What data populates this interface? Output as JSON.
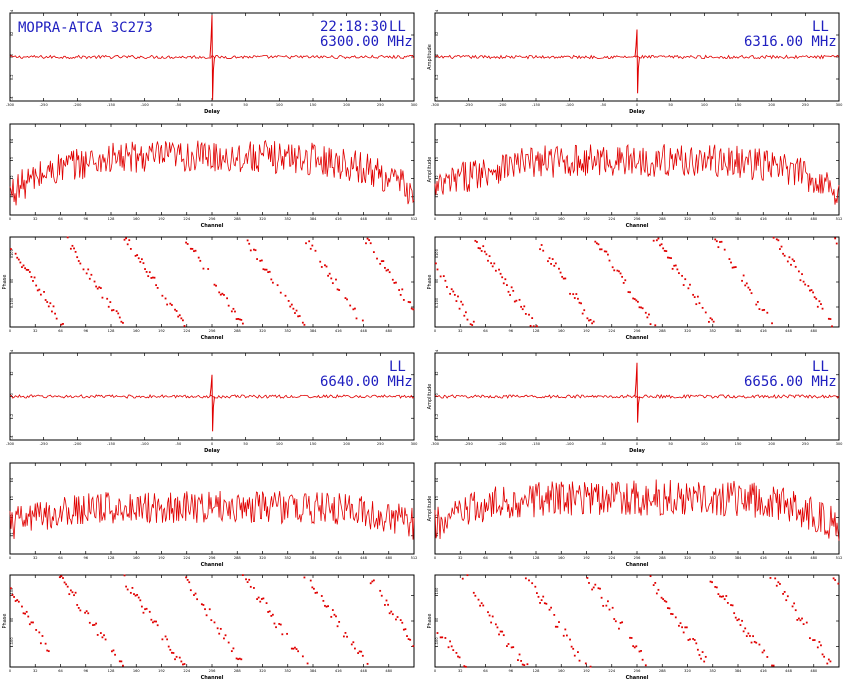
{
  "header": {
    "title": "MOPRA-ATCA 3C273",
    "time": "22:18:30",
    "polarization": "LL"
  },
  "colors": {
    "trace": "#e00000",
    "header_text": "#2020c0",
    "axis": "#000000"
  },
  "chart_data": [
    {
      "id": "p1",
      "type": "line",
      "panel": "delay",
      "freq_label": "6300.00 MHz",
      "pol": "LL",
      "xlabel": "Delay",
      "ylabel": "",
      "xlim": [
        -300,
        300
      ],
      "ylim": [
        -4,
        4
      ],
      "xticks": [
        "-300",
        "-250",
        "-200",
        "-150",
        "-100",
        "-50",
        "0",
        "50",
        "100",
        "150",
        "200",
        "250",
        "300"
      ],
      "yticks": [
        "-4",
        "-2",
        "0",
        "2",
        "4"
      ],
      "signal": {
        "peak_x": 0,
        "peak_y": 3.8,
        "trough_y": -3.9,
        "baseline": 0,
        "noise": 0.15
      }
    },
    {
      "id": "p2",
      "type": "line",
      "panel": "delay",
      "freq_label": "6316.00 MHz",
      "pol": "LL",
      "xlabel": "Delay",
      "ylabel": "Amplitude",
      "xlim": [
        -300,
        300
      ],
      "ylim": [
        -4,
        4
      ],
      "xticks": [
        "-300",
        "-250",
        "-200",
        "-150",
        "-100",
        "-50",
        "0",
        "50",
        "100",
        "150",
        "200",
        "250",
        "300"
      ],
      "yticks": [
        "-4",
        "-2",
        "0",
        "2",
        "4"
      ],
      "signal": {
        "peak_x": 0,
        "peak_y": 2.5,
        "trough_y": -3.3,
        "baseline": 0,
        "noise": 0.15
      }
    },
    {
      "id": "p3",
      "type": "line",
      "panel": "amplitude",
      "xlabel": "Channel",
      "ylabel": "",
      "xlim": [
        0,
        512
      ],
      "ylim": [
        0,
        5
      ],
      "xticks": [
        "0",
        "32",
        "64",
        "96",
        "128",
        "160",
        "192",
        "224",
        "256",
        "288",
        "320",
        "352",
        "384",
        "416",
        "448",
        "480",
        "512"
      ],
      "yticks": [
        "1",
        "2",
        "3",
        "4"
      ],
      "profile": {
        "center": 3.2,
        "edge": 1.2,
        "noise": 0.9
      }
    },
    {
      "id": "p4",
      "type": "line",
      "panel": "amplitude",
      "xlabel": "Channel",
      "ylabel": "Amplitude",
      "xlim": [
        0,
        512
      ],
      "ylim": [
        0,
        5
      ],
      "xticks": [
        "0",
        "32",
        "64",
        "96",
        "128",
        "160",
        "192",
        "224",
        "256",
        "288",
        "320",
        "352",
        "384",
        "416",
        "448",
        "480",
        "512"
      ],
      "yticks": [
        "1",
        "2",
        "3",
        "4"
      ],
      "profile": {
        "center": 3.0,
        "edge": 1.3,
        "noise": 0.9
      }
    },
    {
      "id": "p5",
      "type": "scatter",
      "panel": "phase",
      "xlabel": "Channel",
      "ylabel": "Phase",
      "xlim": [
        0,
        512
      ],
      "ylim": [
        -180,
        180
      ],
      "xticks": [
        "0",
        "32",
        "64",
        "96",
        "128",
        "160",
        "192",
        "224",
        "256",
        "288",
        "320",
        "352",
        "384",
        "416",
        "448",
        "480"
      ],
      "yticks": [
        "-100",
        "0",
        "100"
      ],
      "wrap": {
        "period_channels": 76,
        "offset": 0.1,
        "scatter": 18
      }
    },
    {
      "id": "p6",
      "type": "scatter",
      "panel": "phase",
      "xlabel": "Channel",
      "ylabel": "Phase",
      "xlim": [
        0,
        512
      ],
      "ylim": [
        -180,
        180
      ],
      "xticks": [
        "0",
        "32",
        "64",
        "96",
        "128",
        "160",
        "192",
        "224",
        "256",
        "288",
        "320",
        "352",
        "384",
        "416",
        "448",
        "480"
      ],
      "yticks": [
        "-100",
        "0",
        "100"
      ],
      "wrap": {
        "period_channels": 76,
        "offset": 0.35,
        "scatter": 22
      }
    },
    {
      "id": "p7",
      "type": "line",
      "panel": "delay",
      "freq_label": "6640.00 MHz",
      "pol": "LL",
      "xlabel": "Delay",
      "ylabel": "",
      "xlim": [
        -300,
        300
      ],
      "ylim": [
        -4,
        4
      ],
      "xticks": [
        "-300",
        "-250",
        "-200",
        "-150",
        "-100",
        "-50",
        "0",
        "50",
        "100",
        "150",
        "200",
        "250",
        "300"
      ],
      "yticks": [
        "-4",
        "-2",
        "0",
        "2",
        "4"
      ],
      "signal": {
        "peak_x": 0,
        "peak_y": 2.0,
        "trough_y": -3.2,
        "baseline": 0,
        "noise": 0.15
      }
    },
    {
      "id": "p8",
      "type": "line",
      "panel": "delay",
      "freq_label": "6656.00 MHz",
      "pol": "LL",
      "xlabel": "Delay",
      "ylabel": "Amplitude",
      "xlim": [
        -300,
        300
      ],
      "ylim": [
        -4,
        4
      ],
      "xticks": [
        "-300",
        "-250",
        "-200",
        "-150",
        "-100",
        "-50",
        "0",
        "50",
        "100",
        "150",
        "200",
        "250",
        "300"
      ],
      "yticks": [
        "-4",
        "-2",
        "0",
        "2",
        "4"
      ],
      "signal": {
        "peak_x": 0,
        "peak_y": 3.1,
        "trough_y": -2.4,
        "baseline": 0,
        "noise": 0.15
      }
    },
    {
      "id": "p9",
      "type": "line",
      "panel": "amplitude",
      "xlabel": "Channel",
      "ylabel": "",
      "xlim": [
        0,
        512
      ],
      "ylim": [
        0,
        5
      ],
      "xticks": [
        "0",
        "32",
        "64",
        "96",
        "128",
        "160",
        "192",
        "224",
        "256",
        "288",
        "320",
        "352",
        "384",
        "416",
        "448",
        "480",
        "512"
      ],
      "yticks": [
        "1",
        "2",
        "3",
        "4"
      ],
      "profile": {
        "center": 2.6,
        "edge": 1.6,
        "noise": 0.9
      }
    },
    {
      "id": "p10",
      "type": "line",
      "panel": "amplitude",
      "xlabel": "Channel",
      "ylabel": "Amplitude",
      "xlim": [
        0,
        512
      ],
      "ylim": [
        0,
        5
      ],
      "xticks": [
        "0",
        "32",
        "64",
        "96",
        "128",
        "160",
        "192",
        "224",
        "256",
        "288",
        "320",
        "352",
        "384",
        "416",
        "448",
        "480",
        "512"
      ],
      "yticks": [
        "1",
        "2",
        "3",
        "4"
      ],
      "profile": {
        "center": 3.1,
        "edge": 1.5,
        "noise": 1.0
      }
    },
    {
      "id": "p11",
      "type": "scatter",
      "panel": "phase",
      "xlabel": "Channel",
      "ylabel": "Phase",
      "xlim": [
        0,
        512
      ],
      "ylim": [
        -180,
        180
      ],
      "xticks": [
        "0",
        "32",
        "64",
        "96",
        "128",
        "160",
        "192",
        "224",
        "256",
        "288",
        "320",
        "352",
        "384",
        "416",
        "448",
        "480"
      ],
      "yticks": [
        "-100",
        "0",
        "100"
      ],
      "wrap": {
        "period_channels": 78,
        "offset": 0.2,
        "scatter": 22
      }
    },
    {
      "id": "p12",
      "type": "scatter",
      "panel": "phase",
      "xlabel": "Channel",
      "ylabel": "Phase",
      "xlim": [
        0,
        512
      ],
      "ylim": [
        -180,
        180
      ],
      "xticks": [
        "0",
        "32",
        "64",
        "96",
        "128",
        "160",
        "192",
        "224",
        "256",
        "288",
        "320",
        "352",
        "384",
        "416",
        "448",
        "480"
      ],
      "yticks": [
        "-100",
        "0",
        "100"
      ],
      "wrap": {
        "period_channels": 78,
        "offset": 0.55,
        "scatter": 25
      }
    }
  ]
}
